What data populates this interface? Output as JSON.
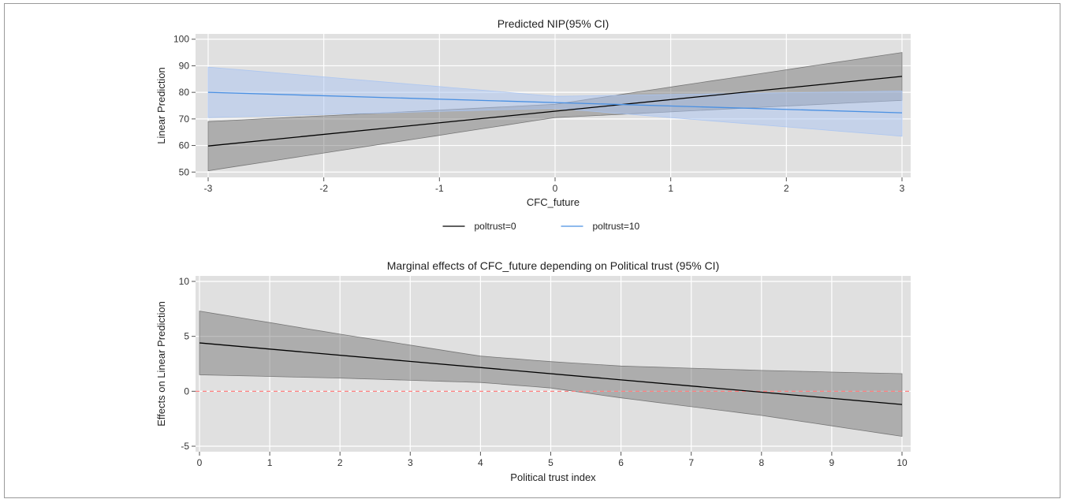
{
  "chart_data": [
    {
      "type": "line",
      "title": "Predicted NIP(95% CI)",
      "xlabel": "CFC_future",
      "ylabel": "Linear Prediction",
      "xlim": [
        -3,
        3
      ],
      "ylim": [
        48,
        102
      ],
      "xticks": [
        -3,
        -2,
        -1,
        0,
        1,
        2,
        3
      ],
      "yticks": [
        50,
        60,
        70,
        80,
        90,
        100
      ],
      "grid": true,
      "legend_position": "bottom",
      "series": [
        {
          "name": "poltrust=0",
          "color": "#000000",
          "band_color": "#6e6e6e",
          "x": [
            -3,
            3
          ],
          "y": [
            59.8,
            86.0
          ],
          "ci_x": [
            -3,
            0,
            3
          ],
          "ci_lower": [
            50.5,
            70.5,
            77.0
          ],
          "ci_upper": [
            69.0,
            75.5,
            95.0
          ]
        },
        {
          "name": "poltrust=10",
          "color": "#4a90e2",
          "band_color": "#a9c4f2",
          "x": [
            -3,
            3
          ],
          "y": [
            80.0,
            72.3
          ],
          "ci_x": [
            -3,
            0,
            3
          ],
          "ci_lower": [
            70.5,
            74.0,
            63.5
          ],
          "ci_upper": [
            89.5,
            78.5,
            80.5
          ]
        }
      ]
    },
    {
      "type": "line",
      "title": "Marginal effects of CFC_future depending on Political trust (95% CI)",
      "xlabel": "Political trust index",
      "ylabel": "Effects on Linear Prediction",
      "xlim": [
        0,
        10
      ],
      "ylim": [
        -5.5,
        10.5
      ],
      "xticks": [
        0,
        1,
        2,
        3,
        4,
        5,
        6,
        7,
        8,
        9,
        10
      ],
      "yticks": [
        -5,
        0,
        5,
        10
      ],
      "grid": true,
      "reference_line": {
        "y": 0,
        "color": "#ff8080",
        "style": "dashed"
      },
      "series": [
        {
          "color": "#000000",
          "band_color": "#6e6e6e",
          "x": [
            0,
            10
          ],
          "y": [
            4.4,
            -1.2
          ],
          "ci_x": [
            0,
            2,
            4,
            5,
            6,
            8,
            10
          ],
          "ci_lower": [
            1.5,
            1.2,
            0.8,
            0.3,
            -0.6,
            -2.2,
            -4.1
          ],
          "ci_upper": [
            7.3,
            5.2,
            3.2,
            2.7,
            2.3,
            1.9,
            1.6
          ]
        }
      ]
    }
  ]
}
